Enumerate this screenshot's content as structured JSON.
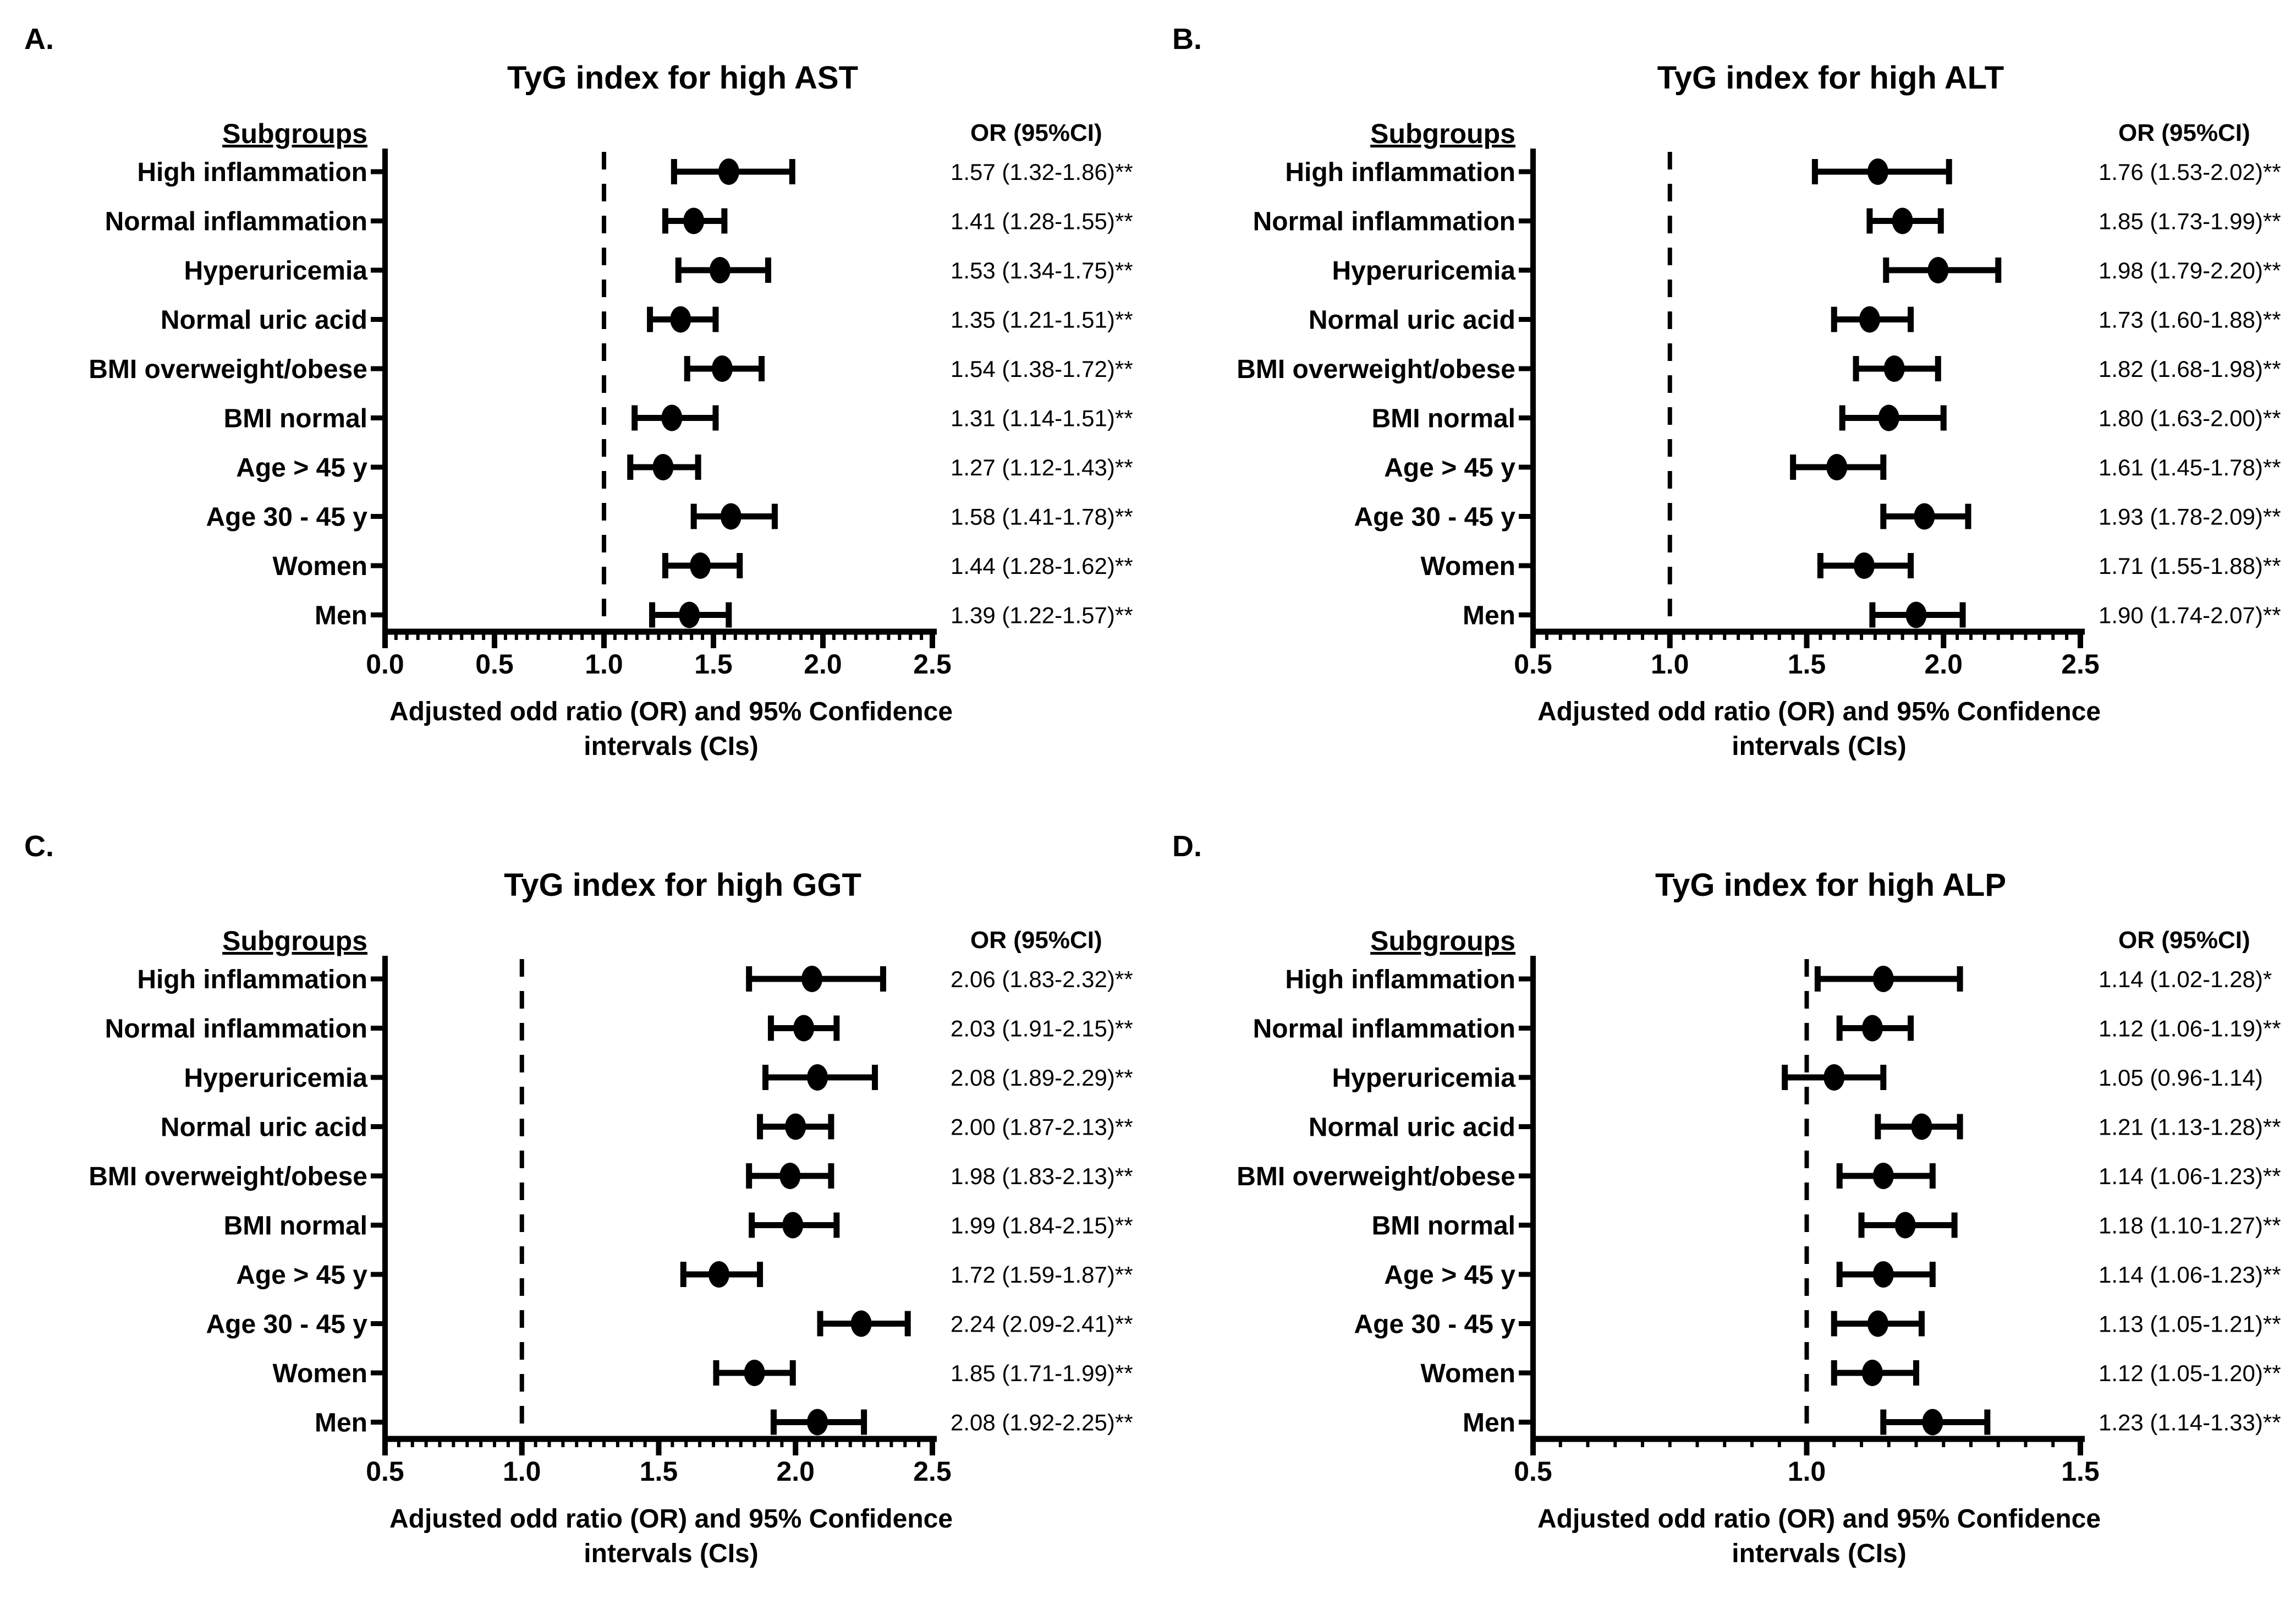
{
  "figure": {
    "background": "#ffffff",
    "ink": "#000000",
    "description_columns": {
      "left": "Subgroups",
      "right": "OR (95%CI)"
    }
  },
  "chart_data": [
    {
      "type": "scatter",
      "variant": "forest-plot",
      "letter": "A.",
      "title": "TyG index for high AST",
      "col_header": "Subgroups",
      "or_header": "OR (95%CI)",
      "xlabel": "Adjusted odd ratio (OR) and 95% Confidence\nintervals (CIs)",
      "xlim": [
        0.0,
        2.5
      ],
      "xticks": [
        "0.0",
        "0.5",
        "1.0",
        "1.5",
        "2.0",
        "2.5"
      ],
      "minor_step": 0.05,
      "ref_line": 1.0,
      "legend_position": "none",
      "grid": false,
      "rows": [
        {
          "label": "High inflammation",
          "or": 1.57,
          "lo": 1.32,
          "hi": 1.86,
          "text": "1.57 (1.32-1.86)**"
        },
        {
          "label": "Normal inflammation",
          "or": 1.41,
          "lo": 1.28,
          "hi": 1.55,
          "text": "1.41 (1.28-1.55)**"
        },
        {
          "label": "Hyperuricemia",
          "or": 1.53,
          "lo": 1.34,
          "hi": 1.75,
          "text": "1.53 (1.34-1.75)**"
        },
        {
          "label": "Normal uric acid",
          "or": 1.35,
          "lo": 1.21,
          "hi": 1.51,
          "text": "1.35 (1.21-1.51)**"
        },
        {
          "label": "BMI overweight/obese",
          "or": 1.54,
          "lo": 1.38,
          "hi": 1.72,
          "text": "1.54 (1.38-1.72)**"
        },
        {
          "label": "BMI normal",
          "or": 1.31,
          "lo": 1.14,
          "hi": 1.51,
          "text": "1.31 (1.14-1.51)**"
        },
        {
          "label": "Age > 45 y",
          "or": 1.27,
          "lo": 1.12,
          "hi": 1.43,
          "text": "1.27 (1.12-1.43)**"
        },
        {
          "label": "Age 30 - 45 y",
          "or": 1.58,
          "lo": 1.41,
          "hi": 1.78,
          "text": "1.58 (1.41-1.78)**"
        },
        {
          "label": "Women",
          "or": 1.44,
          "lo": 1.28,
          "hi": 1.62,
          "text": "1.44 (1.28-1.62)**"
        },
        {
          "label": "Men",
          "or": 1.39,
          "lo": 1.22,
          "hi": 1.57,
          "text": "1.39 (1.22-1.57)**"
        }
      ]
    },
    {
      "type": "scatter",
      "variant": "forest-plot",
      "letter": "B.",
      "title": "TyG index for high ALT",
      "col_header": "Subgroups",
      "or_header": "OR (95%CI)",
      "xlabel": "Adjusted odd ratio (OR) and 95% Confidence\nintervals (CIs)",
      "xlim": [
        0.5,
        2.5
      ],
      "xticks": [
        "0.5",
        "1.0",
        "1.5",
        "2.0",
        "2.5"
      ],
      "minor_step": 0.05,
      "ref_line": 1.0,
      "legend_position": "none",
      "grid": false,
      "rows": [
        {
          "label": "High inflammation",
          "or": 1.76,
          "lo": 1.53,
          "hi": 2.02,
          "text": "1.76 (1.53-2.02)**"
        },
        {
          "label": "Normal inflammation",
          "or": 1.85,
          "lo": 1.73,
          "hi": 1.99,
          "text": "1.85 (1.73-1.99)**"
        },
        {
          "label": "Hyperuricemia",
          "or": 1.98,
          "lo": 1.79,
          "hi": 2.2,
          "text": "1.98 (1.79-2.20)**"
        },
        {
          "label": "Normal uric acid",
          "or": 1.73,
          "lo": 1.6,
          "hi": 1.88,
          "text": "1.73 (1.60-1.88)**"
        },
        {
          "label": "BMI overweight/obese",
          "or": 1.82,
          "lo": 1.68,
          "hi": 1.98,
          "text": "1.82 (1.68-1.98)**"
        },
        {
          "label": "BMI normal",
          "or": 1.8,
          "lo": 1.63,
          "hi": 2.0,
          "text": "1.80 (1.63-2.00)**"
        },
        {
          "label": "Age > 45 y",
          "or": 1.61,
          "lo": 1.45,
          "hi": 1.78,
          "text": "1.61 (1.45-1.78)**"
        },
        {
          "label": "Age 30 - 45 y",
          "or": 1.93,
          "lo": 1.78,
          "hi": 2.09,
          "text": "1.93 (1.78-2.09)**"
        },
        {
          "label": "Women",
          "or": 1.71,
          "lo": 1.55,
          "hi": 1.88,
          "text": "1.71 (1.55-1.88)**"
        },
        {
          "label": "Men",
          "or": 1.9,
          "lo": 1.74,
          "hi": 2.07,
          "text": "1.90 (1.74-2.07)**"
        }
      ]
    },
    {
      "type": "scatter",
      "variant": "forest-plot",
      "letter": "C.",
      "title": "TyG index for high GGT",
      "col_header": "Subgroups",
      "or_header": "OR (95%CI)",
      "xlabel": "Adjusted odd ratio (OR) and 95% Confidence\nintervals (CIs)",
      "xlim": [
        0.5,
        2.5
      ],
      "xticks": [
        "0.5",
        "1.0",
        "1.5",
        "2.0",
        "2.5"
      ],
      "minor_step": 0.05,
      "ref_line": 1.0,
      "legend_position": "none",
      "grid": false,
      "rows": [
        {
          "label": "High inflammation",
          "or": 2.06,
          "lo": 1.83,
          "hi": 2.32,
          "text": "2.06 (1.83-2.32)**"
        },
        {
          "label": "Normal inflammation",
          "or": 2.03,
          "lo": 1.91,
          "hi": 2.15,
          "text": "2.03 (1.91-2.15)**"
        },
        {
          "label": "Hyperuricemia",
          "or": 2.08,
          "lo": 1.89,
          "hi": 2.29,
          "text": "2.08 (1.89-2.29)**"
        },
        {
          "label": "Normal uric acid",
          "or": 2.0,
          "lo": 1.87,
          "hi": 2.13,
          "text": "2.00 (1.87-2.13)**"
        },
        {
          "label": "BMI overweight/obese",
          "or": 1.98,
          "lo": 1.83,
          "hi": 2.13,
          "text": "1.98 (1.83-2.13)**"
        },
        {
          "label": "BMI normal",
          "or": 1.99,
          "lo": 1.84,
          "hi": 2.15,
          "text": "1.99 (1.84-2.15)**"
        },
        {
          "label": "Age > 45 y",
          "or": 1.72,
          "lo": 1.59,
          "hi": 1.87,
          "text": "1.72 (1.59-1.87)**"
        },
        {
          "label": "Age 30 - 45 y",
          "or": 2.24,
          "lo": 2.09,
          "hi": 2.41,
          "text": "2.24 (2.09-2.41)**"
        },
        {
          "label": "Women",
          "or": 1.85,
          "lo": 1.71,
          "hi": 1.99,
          "text": "1.85 (1.71-1.99)**"
        },
        {
          "label": "Men",
          "or": 2.08,
          "lo": 1.92,
          "hi": 2.25,
          "text": "2.08 (1.92-2.25)**"
        }
      ]
    },
    {
      "type": "scatter",
      "variant": "forest-plot",
      "letter": "D.",
      "title": "TyG index for high ALP",
      "col_header": "Subgroups",
      "or_header": "OR (95%CI)",
      "xlabel": "Adjusted odd ratio (OR) and 95% Confidence\nintervals (CIs)",
      "xlim": [
        0.5,
        1.5
      ],
      "xticks": [
        "0.5",
        "1.0",
        "1.5"
      ],
      "minor_step": 0.05,
      "ref_line": 1.0,
      "legend_position": "none",
      "grid": false,
      "rows": [
        {
          "label": "High inflammation",
          "or": 1.14,
          "lo": 1.02,
          "hi": 1.28,
          "text": "1.14 (1.02-1.28)*"
        },
        {
          "label": "Normal inflammation",
          "or": 1.12,
          "lo": 1.06,
          "hi": 1.19,
          "text": "1.12 (1.06-1.19)**"
        },
        {
          "label": "Hyperuricemia",
          "or": 1.05,
          "lo": 0.96,
          "hi": 1.14,
          "text": "1.05 (0.96-1.14)"
        },
        {
          "label": "Normal uric acid",
          "or": 1.21,
          "lo": 1.13,
          "hi": 1.28,
          "text": "1.21 (1.13-1.28)**"
        },
        {
          "label": "BMI overweight/obese",
          "or": 1.14,
          "lo": 1.06,
          "hi": 1.23,
          "text": "1.14 (1.06-1.23)**"
        },
        {
          "label": "BMI normal",
          "or": 1.18,
          "lo": 1.1,
          "hi": 1.27,
          "text": "1.18 (1.10-1.27)**"
        },
        {
          "label": "Age > 45 y",
          "or": 1.14,
          "lo": 1.06,
          "hi": 1.23,
          "text": "1.14 (1.06-1.23)**"
        },
        {
          "label": "Age 30 - 45 y",
          "or": 1.13,
          "lo": 1.05,
          "hi": 1.21,
          "text": "1.13 (1.05-1.21)**"
        },
        {
          "label": "Women",
          "or": 1.12,
          "lo": 1.05,
          "hi": 1.2,
          "text": "1.12 (1.05-1.20)**"
        },
        {
          "label": "Men",
          "or": 1.23,
          "lo": 1.14,
          "hi": 1.33,
          "text": "1.23 (1.14-1.33)**"
        }
      ]
    }
  ]
}
